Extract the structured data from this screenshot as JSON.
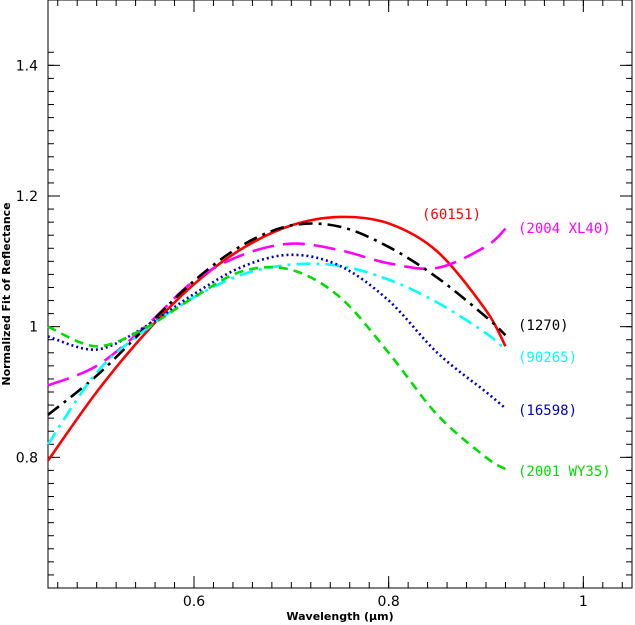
{
  "chart_data": {
    "type": "line",
    "title": "",
    "xlabel": "Wavelength (μm)",
    "ylabel": "Normalized Fit of Reflectance",
    "xlim": [
      0.45,
      1.05
    ],
    "ylim": [
      0.6,
      1.5
    ],
    "grid": false,
    "x_ticks": [
      0.6,
      0.8,
      1.0
    ],
    "x_tick_labels": [
      "0.6",
      "0.8",
      "1"
    ],
    "y_ticks": [
      0.8,
      1.0,
      1.2,
      1.4
    ],
    "y_tick_labels": [
      "0.8",
      "1",
      "1.2",
      "1.4"
    ],
    "series": [
      {
        "name": "(60151)",
        "color": "#ff0000",
        "dash": "solid",
        "x": [
          0.45,
          0.5,
          0.55,
          0.6,
          0.65,
          0.7,
          0.75,
          0.8,
          0.85,
          0.9,
          0.92
        ],
        "y": [
          0.795,
          0.9,
          0.99,
          1.065,
          1.12,
          1.155,
          1.168,
          1.158,
          1.115,
          1.025,
          0.97
        ]
      },
      {
        "name": "(2004 XL40)",
        "color": "#ff00ff",
        "dash": "long-dash",
        "x": [
          0.45,
          0.5,
          0.55,
          0.6,
          0.65,
          0.7,
          0.75,
          0.8,
          0.85,
          0.9,
          0.92
        ],
        "y": [
          0.91,
          0.94,
          1.0,
          1.07,
          1.11,
          1.127,
          1.117,
          1.097,
          1.09,
          1.123,
          1.15
        ]
      },
      {
        "name": "(1270)",
        "color": "#000000",
        "dash": "dash-dot",
        "x": [
          0.45,
          0.5,
          0.55,
          0.6,
          0.65,
          0.7,
          0.75,
          0.8,
          0.85,
          0.9,
          0.92
        ],
        "y": [
          0.865,
          0.925,
          0.998,
          1.07,
          1.125,
          1.155,
          1.153,
          1.122,
          1.075,
          1.015,
          0.987
        ]
      },
      {
        "name": "(90265)",
        "color": "#00ffff",
        "dash": "dash-dot",
        "x": [
          0.45,
          0.5,
          0.55,
          0.6,
          0.65,
          0.7,
          0.75,
          0.8,
          0.85,
          0.9,
          0.92
        ],
        "y": [
          0.82,
          0.93,
          0.995,
          1.045,
          1.08,
          1.095,
          1.093,
          1.072,
          1.037,
          0.99,
          0.965
        ]
      },
      {
        "name": "(16598)",
        "color": "#0000cc",
        "dash": "dotted",
        "x": [
          0.45,
          0.5,
          0.55,
          0.6,
          0.65,
          0.7,
          0.75,
          0.8,
          0.85,
          0.9,
          0.92
        ],
        "y": [
          0.985,
          0.965,
          1.0,
          1.05,
          1.092,
          1.11,
          1.093,
          1.04,
          0.96,
          0.9,
          0.875
        ]
      },
      {
        "name": "(2001 WY35)",
        "color": "#00dd00",
        "dash": "dashed",
        "x": [
          0.45,
          0.5,
          0.55,
          0.6,
          0.65,
          0.7,
          0.75,
          0.8,
          0.85,
          0.9,
          0.92
        ],
        "y": [
          1.0,
          0.97,
          0.998,
          1.045,
          1.085,
          1.087,
          1.045,
          0.96,
          0.865,
          0.8,
          0.782
        ]
      }
    ]
  }
}
